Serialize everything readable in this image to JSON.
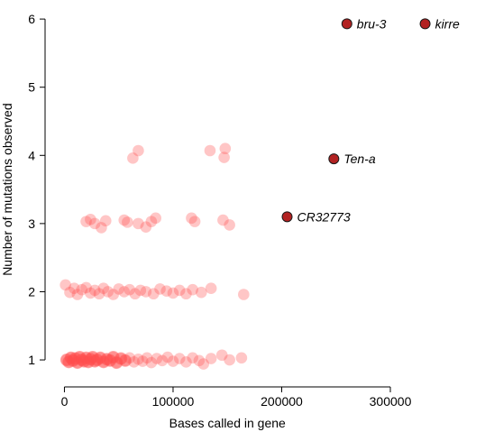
{
  "chart_data": {
    "type": "scatter",
    "title": "",
    "xlabel": "Bases called in gene",
    "ylabel": "Number of mutations observed",
    "xlim": [
      -12000,
      378000
    ],
    "ylim": [
      0.67,
      6.2
    ],
    "xticks": [
      0,
      100000,
      200000,
      300000
    ],
    "xtick_labels": [
      "0",
      "100000",
      "200000",
      "300000"
    ],
    "yticks": [
      1,
      2,
      3,
      4,
      5,
      6
    ],
    "ytick_labels": [
      "1",
      "2",
      "3",
      "4",
      "5",
      "6"
    ],
    "grid": false,
    "legend": "none",
    "colors": {
      "background_points": "#ff4d4d",
      "highlight_fill": "#b22222",
      "highlight_stroke": "#1a1a1a"
    },
    "series": [
      {
        "style": "background",
        "points": [
          {
            "x": 2000,
            "y": 1.0
          },
          {
            "x": 4000,
            "y": 0.97
          },
          {
            "x": 6000,
            "y": 1.03
          },
          {
            "x": 8000,
            "y": 0.99
          },
          {
            "x": 10000,
            "y": 1.02
          },
          {
            "x": 12000,
            "y": 0.96
          },
          {
            "x": 14000,
            "y": 1.04
          },
          {
            "x": 16000,
            "y": 1.0
          },
          {
            "x": 18000,
            "y": 0.98
          },
          {
            "x": 20000,
            "y": 1.03
          },
          {
            "x": 22000,
            "y": 0.97
          },
          {
            "x": 24000,
            "y": 1.01
          },
          {
            "x": 26000,
            "y": 1.04
          },
          {
            "x": 28000,
            "y": 0.98
          },
          {
            "x": 30000,
            "y": 1.0
          },
          {
            "x": 33000,
            "y": 1.03
          },
          {
            "x": 36000,
            "y": 0.97
          },
          {
            "x": 39000,
            "y": 1.01
          },
          {
            "x": 42000,
            "y": 0.99
          },
          {
            "x": 45000,
            "y": 1.04
          },
          {
            "x": 48000,
            "y": 0.96
          },
          {
            "x": 52000,
            "y": 1.02
          },
          {
            "x": 56000,
            "y": 0.99
          },
          {
            "x": 60000,
            "y": 1.03
          },
          {
            "x": 64000,
            "y": 0.97
          },
          {
            "x": 68000,
            "y": 1.01
          },
          {
            "x": 72000,
            "y": 0.98
          },
          {
            "x": 76000,
            "y": 1.03
          },
          {
            "x": 80000,
            "y": 0.96
          },
          {
            "x": 85000,
            "y": 1.02
          },
          {
            "x": 90000,
            "y": 0.99
          },
          {
            "x": 95000,
            "y": 1.04
          },
          {
            "x": 100000,
            "y": 0.98
          },
          {
            "x": 106000,
            "y": 1.02
          },
          {
            "x": 112000,
            "y": 0.97
          },
          {
            "x": 118000,
            "y": 1.03
          },
          {
            "x": 124000,
            "y": 0.99
          },
          {
            "x": 128000,
            "y": 0.94
          },
          {
            "x": 135000,
            "y": 1.02
          },
          {
            "x": 145000,
            "y": 1.07
          },
          {
            "x": 152000,
            "y": 1.0
          },
          {
            "x": 163000,
            "y": 1.03
          },
          {
            "x": 1000,
            "y": 2.1
          },
          {
            "x": 5000,
            "y": 1.99
          },
          {
            "x": 9000,
            "y": 2.05
          },
          {
            "x": 12000,
            "y": 1.96
          },
          {
            "x": 16000,
            "y": 2.03
          },
          {
            "x": 20000,
            "y": 2.06
          },
          {
            "x": 24000,
            "y": 1.98
          },
          {
            "x": 28000,
            "y": 2.02
          },
          {
            "x": 32000,
            "y": 1.97
          },
          {
            "x": 36000,
            "y": 2.05
          },
          {
            "x": 40000,
            "y": 2.0
          },
          {
            "x": 45000,
            "y": 1.96
          },
          {
            "x": 50000,
            "y": 2.04
          },
          {
            "x": 55000,
            "y": 2.0
          },
          {
            "x": 60000,
            "y": 2.03
          },
          {
            "x": 65000,
            "y": 1.97
          },
          {
            "x": 70000,
            "y": 2.02
          },
          {
            "x": 75000,
            "y": 2.0
          },
          {
            "x": 82000,
            "y": 1.97
          },
          {
            "x": 88000,
            "y": 2.04
          },
          {
            "x": 94000,
            "y": 2.01
          },
          {
            "x": 100000,
            "y": 1.98
          },
          {
            "x": 106000,
            "y": 2.02
          },
          {
            "x": 112000,
            "y": 1.97
          },
          {
            "x": 118000,
            "y": 2.03
          },
          {
            "x": 126000,
            "y": 1.99
          },
          {
            "x": 135000,
            "y": 2.05
          },
          {
            "x": 165000,
            "y": 1.96
          },
          {
            "x": 20000,
            "y": 3.03
          },
          {
            "x": 24000,
            "y": 3.06
          },
          {
            "x": 28000,
            "y": 3.0
          },
          {
            "x": 34000,
            "y": 2.94
          },
          {
            "x": 38000,
            "y": 3.04
          },
          {
            "x": 55000,
            "y": 3.05
          },
          {
            "x": 58000,
            "y": 3.02
          },
          {
            "x": 68000,
            "y": 3.0
          },
          {
            "x": 75000,
            "y": 2.95
          },
          {
            "x": 80000,
            "y": 3.03
          },
          {
            "x": 84000,
            "y": 3.08
          },
          {
            "x": 117000,
            "y": 3.08
          },
          {
            "x": 120000,
            "y": 3.03
          },
          {
            "x": 146000,
            "y": 3.05
          },
          {
            "x": 152000,
            "y": 2.98
          },
          {
            "x": 63000,
            "y": 3.96
          },
          {
            "x": 68000,
            "y": 4.07
          },
          {
            "x": 134000,
            "y": 4.07
          },
          {
            "x": 148000,
            "y": 4.1
          },
          {
            "x": 147000,
            "y": 3.97
          }
        ]
      },
      {
        "style": "highlight",
        "points": [
          {
            "x": 260000,
            "y": 5.93,
            "label": "bru-3"
          },
          {
            "x": 332000,
            "y": 5.93,
            "label": "kirre"
          },
          {
            "x": 248000,
            "y": 3.95,
            "label": "Ten-a"
          },
          {
            "x": 205000,
            "y": 3.1,
            "label": "CR32773"
          }
        ]
      }
    ]
  }
}
